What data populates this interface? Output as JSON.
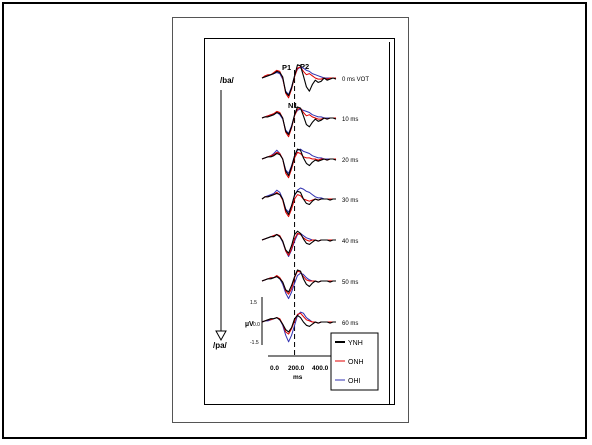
{
  "chart_data": {
    "type": "line",
    "continuum_top_label": "/ba/",
    "continuum_bottom_label": "/pa/",
    "xlabel": "ms",
    "x_ticks": [
      "0.0",
      "200.0",
      "400.0"
    ],
    "xlim": [
      0,
      500
    ],
    "dashed_marker_ms": 220,
    "y_ticks": [
      "1.5",
      "0.0",
      "-1.5"
    ],
    "ylabel": "µV",
    "ylim": [
      -1.5,
      1.5
    ],
    "peak_labels": [
      "P1",
      "P2",
      "N1"
    ],
    "conditions": [
      "0 ms VOT",
      "10 ms",
      "20 ms",
      "30 ms",
      "40 ms",
      "50 ms",
      "60 ms"
    ],
    "x": [
      0,
      20,
      40,
      60,
      80,
      100,
      120,
      140,
      160,
      180,
      200,
      220,
      240,
      260,
      280,
      300,
      320,
      340,
      360,
      380,
      400,
      420,
      440,
      460,
      480,
      500
    ],
    "series": [
      {
        "name": "YNH",
        "color": "#000000",
        "panels": [
          [
            0.0,
            0.1,
            0.2,
            0.3,
            0.4,
            0.6,
            0.5,
            0.1,
            -1.3,
            -1.6,
            -0.9,
            0.2,
            1.2,
            1.1,
            0.2,
            -0.8,
            -1.2,
            -0.6,
            -0.2,
            -0.4,
            -0.3,
            0.0,
            -0.2,
            -0.1,
            0.0,
            -0.1
          ],
          [
            0.0,
            0.1,
            0.1,
            0.2,
            0.3,
            0.5,
            0.4,
            0.0,
            -1.2,
            -1.5,
            -0.8,
            0.3,
            1.0,
            0.9,
            0.2,
            -0.6,
            -0.8,
            -0.4,
            -0.1,
            -0.3,
            -0.2,
            0.0,
            -0.1,
            0.0,
            0.0,
            -0.1
          ],
          [
            0.0,
            0.1,
            0.2,
            0.2,
            0.3,
            0.5,
            0.4,
            0.0,
            -1.1,
            -1.5,
            -0.7,
            0.3,
            0.9,
            0.8,
            0.1,
            -0.4,
            -0.6,
            -0.3,
            -0.1,
            -0.2,
            -0.1,
            0.0,
            -0.1,
            0.0,
            0.0,
            -0.1
          ],
          [
            0.0,
            0.2,
            0.2,
            0.3,
            0.4,
            0.5,
            0.4,
            0.0,
            -1.0,
            -1.4,
            -0.6,
            0.4,
            0.7,
            0.6,
            0.0,
            -0.4,
            -0.5,
            -0.2,
            0.0,
            -0.1,
            0.0,
            0.0,
            0.0,
            -0.1,
            0.0,
            0.0
          ],
          [
            0.0,
            0.1,
            0.2,
            0.3,
            0.3,
            0.5,
            0.3,
            -0.1,
            -0.9,
            -1.2,
            -0.5,
            0.5,
            0.8,
            0.6,
            0.1,
            -0.3,
            -0.4,
            -0.2,
            0.0,
            -0.1,
            0.0,
            0.0,
            0.0,
            -0.1,
            0.0,
            0.0
          ],
          [
            0.0,
            0.1,
            0.2,
            0.2,
            0.3,
            0.4,
            0.2,
            -0.1,
            -0.8,
            -1.0,
            -0.4,
            0.4,
            1.0,
            0.9,
            0.2,
            -0.3,
            -0.5,
            -0.2,
            0.0,
            -0.1,
            0.0,
            0.0,
            0.0,
            -0.1,
            0.0,
            0.0
          ],
          [
            0.0,
            0.1,
            0.2,
            0.3,
            0.3,
            0.4,
            0.2,
            -0.2,
            -0.7,
            -0.9,
            -0.5,
            0.3,
            0.6,
            0.4,
            0.0,
            -0.3,
            -0.4,
            -0.2,
            0.0,
            -0.1,
            0.0,
            0.0,
            0.0,
            -0.1,
            0.0,
            0.0
          ]
        ]
      },
      {
        "name": "ONH",
        "color": "#e00000",
        "panels": [
          [
            0.0,
            0.2,
            0.3,
            0.3,
            0.5,
            0.7,
            0.6,
            0.0,
            -1.4,
            -1.8,
            -1.0,
            0.1,
            0.9,
            1.0,
            0.6,
            0.3,
            0.4,
            0.2,
            0.0,
            -0.1,
            -0.1,
            0.0,
            -0.1,
            0.0,
            0.0,
            0.0
          ],
          [
            0.0,
            0.1,
            0.2,
            0.3,
            0.4,
            0.6,
            0.5,
            0.0,
            -1.3,
            -1.7,
            -0.9,
            0.2,
            0.8,
            0.9,
            0.5,
            0.2,
            0.3,
            0.1,
            0.0,
            -0.1,
            -0.1,
            0.0,
            -0.1,
            0.0,
            0.0,
            0.0
          ],
          [
            0.0,
            0.1,
            0.2,
            0.3,
            0.4,
            0.6,
            0.5,
            0.0,
            -1.3,
            -1.7,
            -0.9,
            0.1,
            0.6,
            0.5,
            0.2,
            0.1,
            0.1,
            0.0,
            0.0,
            -0.1,
            0.0,
            0.0,
            -0.1,
            0.0,
            0.0,
            0.0
          ],
          [
            0.0,
            0.2,
            0.2,
            0.3,
            0.4,
            0.6,
            0.4,
            -0.1,
            -1.2,
            -1.6,
            -0.9,
            0.0,
            0.4,
            0.3,
            0.0,
            -0.1,
            -0.2,
            -0.1,
            0.0,
            -0.1,
            0.0,
            0.0,
            0.0,
            0.0,
            0.0,
            0.0
          ],
          [
            0.0,
            0.1,
            0.2,
            0.3,
            0.4,
            0.5,
            0.4,
            -0.1,
            -1.0,
            -1.4,
            -0.8,
            0.1,
            0.6,
            0.5,
            0.2,
            0.0,
            -0.1,
            0.0,
            0.0,
            -0.1,
            0.0,
            0.0,
            0.0,
            0.0,
            0.0,
            0.0
          ],
          [
            0.0,
            0.1,
            0.2,
            0.3,
            0.3,
            0.5,
            0.3,
            -0.1,
            -0.9,
            -1.2,
            -0.7,
            0.3,
            0.9,
            0.8,
            0.4,
            0.1,
            0.0,
            0.0,
            0.0,
            -0.1,
            0.0,
            0.0,
            0.0,
            0.0,
            0.0,
            0.0
          ],
          [
            0.0,
            0.1,
            0.2,
            0.2,
            0.3,
            0.4,
            0.3,
            -0.2,
            -0.9,
            -1.1,
            -0.6,
            0.1,
            0.7,
            0.8,
            0.5,
            0.2,
            0.1,
            0.0,
            0.0,
            -0.1,
            0.0,
            0.0,
            0.0,
            0.0,
            0.0,
            0.0
          ]
        ]
      },
      {
        "name": "OHI",
        "color": "#3030b0",
        "panels": [
          [
            0.0,
            0.1,
            0.2,
            0.3,
            0.4,
            0.5,
            0.4,
            -0.1,
            -1.2,
            -1.5,
            -0.8,
            0.2,
            0.8,
            1.0,
            0.9,
            0.7,
            0.6,
            0.4,
            0.3,
            0.2,
            0.1,
            0.0,
            0.0,
            0.0,
            0.0,
            0.0
          ],
          [
            0.0,
            0.1,
            0.2,
            0.3,
            0.3,
            0.5,
            0.3,
            -0.1,
            -1.1,
            -1.4,
            -0.7,
            0.3,
            0.7,
            0.8,
            0.7,
            0.6,
            0.5,
            0.3,
            0.2,
            0.1,
            0.1,
            0.0,
            0.0,
            0.0,
            0.0,
            0.0
          ],
          [
            0.0,
            0.1,
            0.2,
            0.3,
            0.5,
            0.8,
            0.5,
            0.0,
            -1.0,
            -1.3,
            -0.6,
            0.3,
            0.8,
            0.9,
            0.7,
            0.6,
            0.5,
            0.3,
            0.2,
            0.1,
            0.1,
            0.0,
            0.0,
            0.0,
            0.0,
            0.0
          ],
          [
            0.0,
            0.2,
            0.3,
            0.4,
            0.5,
            0.8,
            0.6,
            0.0,
            -0.9,
            -1.2,
            -0.6,
            0.3,
            0.8,
            1.0,
            0.9,
            0.7,
            0.6,
            0.4,
            0.2,
            0.1,
            0.1,
            0.0,
            0.0,
            0.0,
            0.0,
            0.0
          ],
          [
            0.0,
            0.1,
            0.2,
            0.3,
            0.4,
            0.5,
            0.3,
            -0.2,
            -1.0,
            -1.5,
            -0.9,
            -0.1,
            0.5,
            0.6,
            0.4,
            0.2,
            0.1,
            0.0,
            0.0,
            -0.1,
            0.0,
            0.0,
            0.0,
            0.0,
            0.0,
            0.0
          ],
          [
            0.0,
            0.1,
            0.2,
            0.3,
            0.3,
            0.4,
            0.2,
            -0.3,
            -1.1,
            -1.6,
            -1.0,
            -0.2,
            0.5,
            0.7,
            0.6,
            0.3,
            0.1,
            0.0,
            0.0,
            -0.1,
            0.0,
            0.0,
            0.0,
            0.0,
            0.0,
            0.0
          ],
          [
            0.0,
            0.1,
            0.1,
            0.2,
            0.3,
            0.4,
            0.2,
            -0.3,
            -1.2,
            -1.8,
            -1.2,
            -0.3,
            0.6,
            0.9,
            0.8,
            0.4,
            0.2,
            0.0,
            0.0,
            -0.1,
            0.0,
            0.0,
            0.0,
            0.0,
            0.0,
            0.0
          ]
        ]
      }
    ]
  }
}
